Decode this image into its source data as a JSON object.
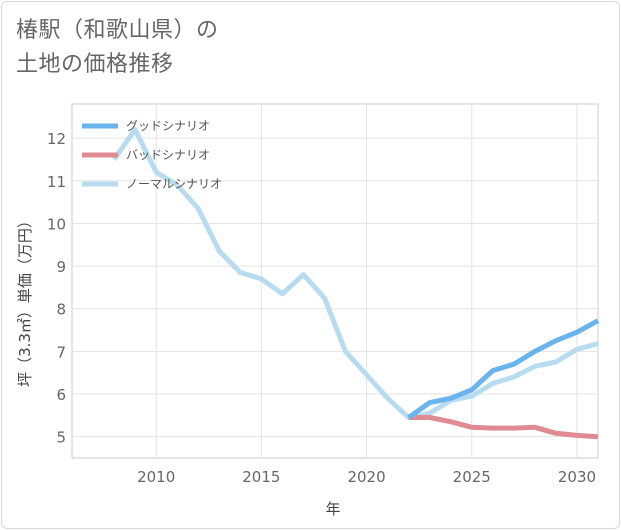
{
  "title_line1": "椿駅（和歌山県）の",
  "title_line2": "土地の価格推移",
  "chart_data": {
    "type": "line",
    "xlabel": "年",
    "ylabel": "坪（3.3㎡）単価（万円）",
    "xlim": [
      2006,
      2031
    ],
    "ylim": [
      4.5,
      12.8
    ],
    "xticks": [
      2010,
      2015,
      2020,
      2025,
      2030
    ],
    "yticks": [
      5,
      6,
      7,
      8,
      9,
      10,
      11,
      12
    ],
    "grid": true,
    "legend_position": "top-left",
    "series": [
      {
        "name": "グッドシナリオ",
        "color": "#6ab4ee",
        "x": [
          2022,
          2023,
          2024,
          2025,
          2026,
          2027,
          2028,
          2029,
          2030,
          2031
        ],
        "y": [
          5.45,
          5.8,
          5.9,
          6.1,
          6.55,
          6.7,
          7.0,
          7.25,
          7.45,
          7.72
        ]
      },
      {
        "name": "バッドシナリオ",
        "color": "#e08a92",
        "x": [
          2022,
          2023,
          2024,
          2025,
          2026,
          2027,
          2028,
          2029,
          2030,
          2031
        ],
        "y": [
          5.45,
          5.45,
          5.35,
          5.22,
          5.2,
          5.2,
          5.22,
          5.08,
          5.03,
          5.0
        ]
      },
      {
        "name": "ノーマルシナリオ",
        "color": "#b8dcef",
        "x": [
          2008,
          2009,
          2010,
          2011,
          2012,
          2013,
          2014,
          2015,
          2016,
          2017,
          2018,
          2019,
          2020,
          2021,
          2022,
          2023,
          2024,
          2025,
          2026,
          2027,
          2028,
          2029,
          2030,
          2031
        ],
        "y": [
          11.5,
          12.2,
          11.2,
          10.9,
          10.35,
          9.35,
          8.85,
          8.7,
          8.35,
          8.8,
          8.25,
          7.0,
          6.45,
          5.9,
          5.45,
          5.55,
          5.85,
          5.95,
          6.25,
          6.4,
          6.65,
          6.75,
          7.05,
          7.18
        ]
      }
    ]
  }
}
